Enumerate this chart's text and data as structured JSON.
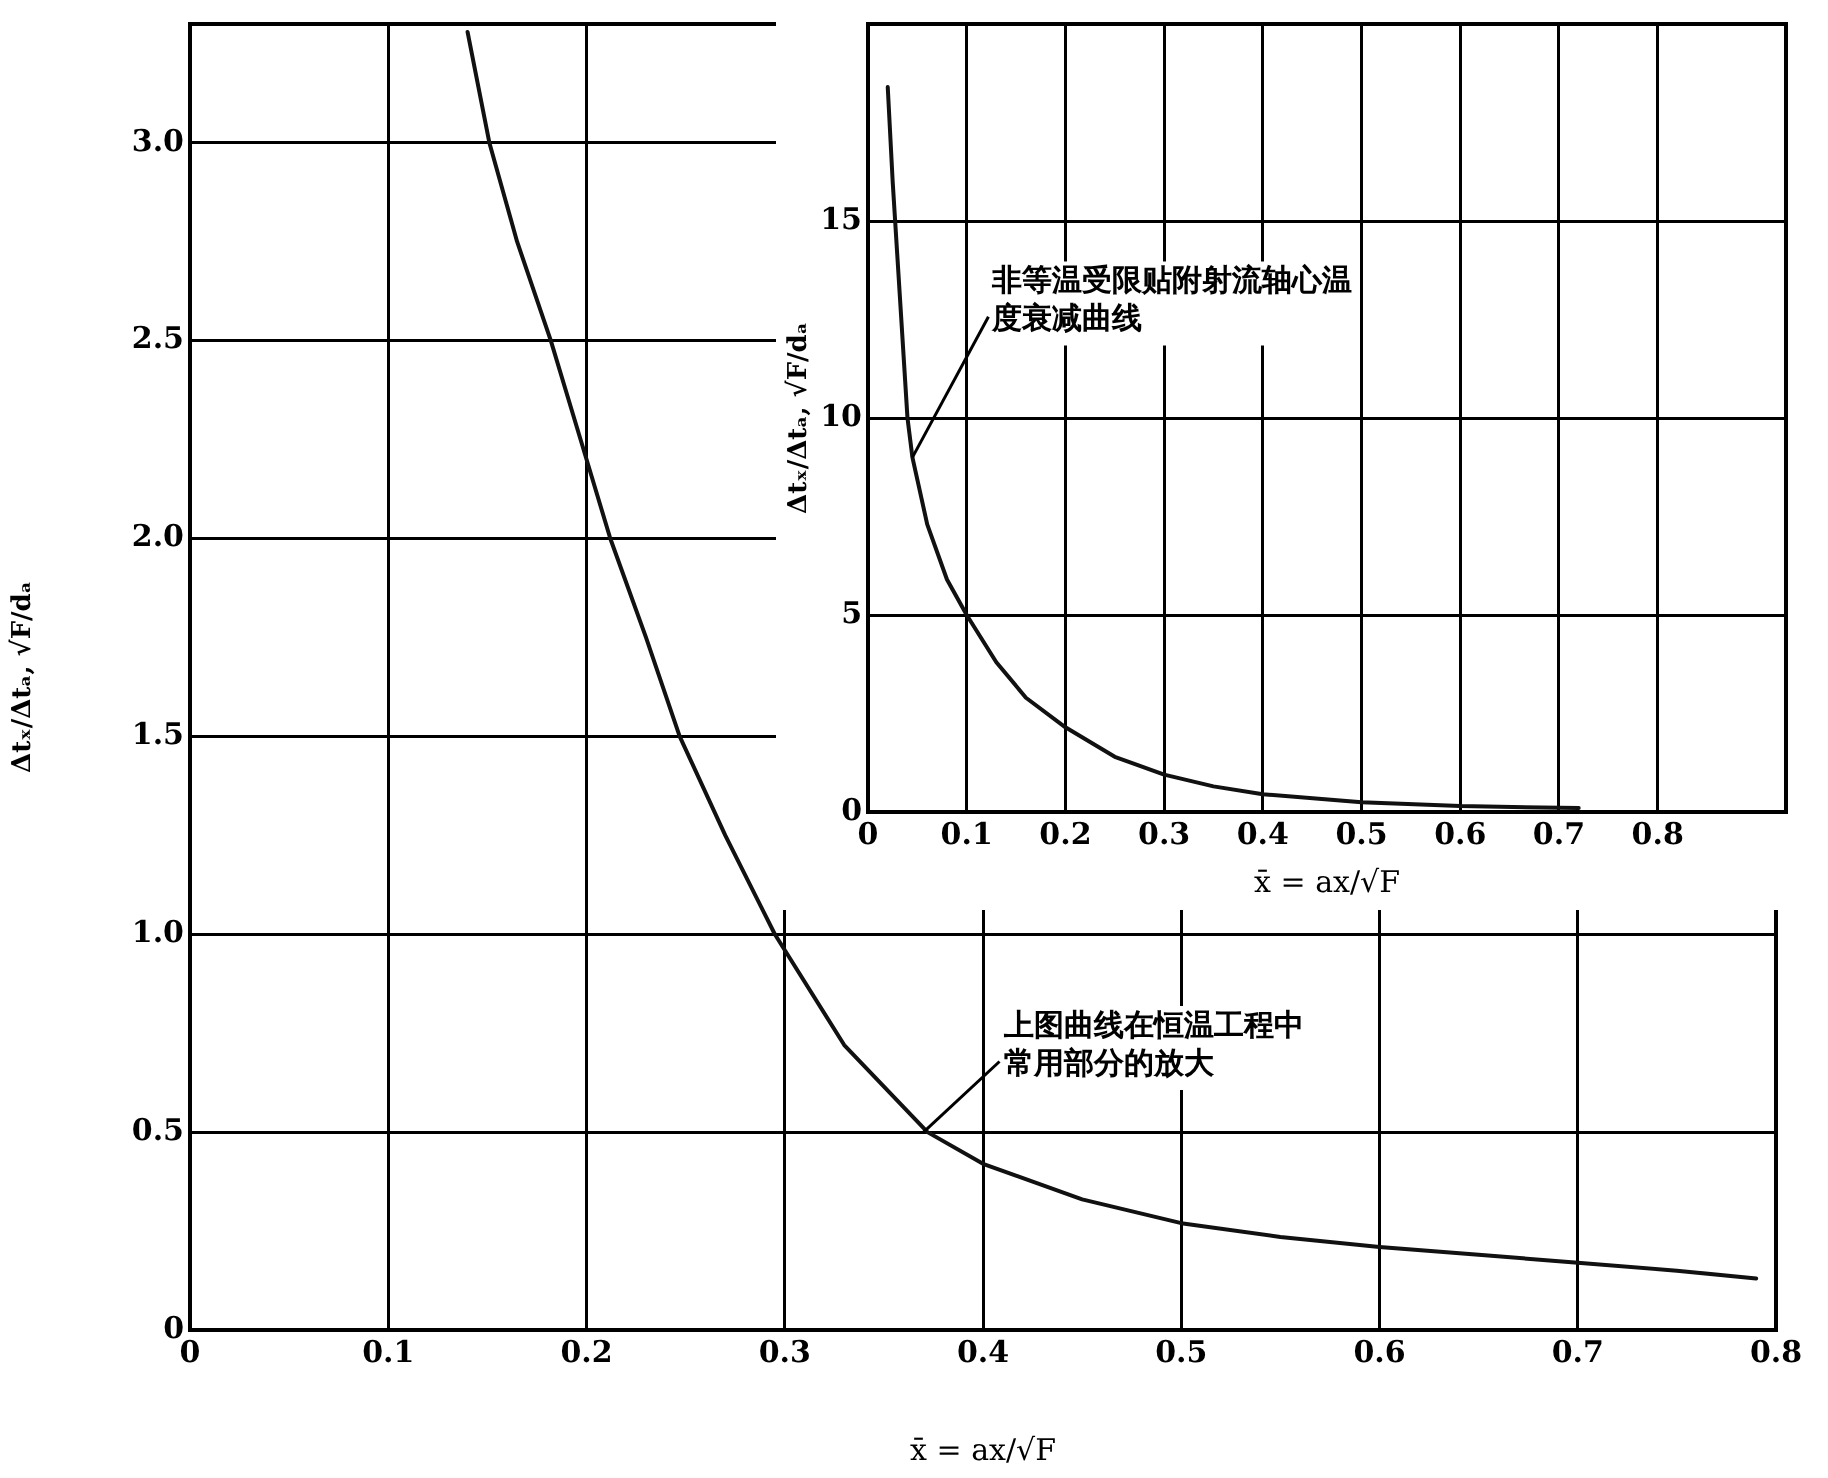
{
  "chart_data": [
    {
      "type": "line",
      "xlabel": "x̄ = ax/√F",
      "ylabel": "Δtₓ/Δtₐ, √F/dₐ",
      "xlim": [
        0,
        0.8
      ],
      "ylim": [
        0,
        3.3
      ],
      "xticks": [
        0,
        0.1,
        0.2,
        0.3,
        0.4,
        0.5,
        0.6,
        0.7,
        0.8
      ],
      "yticks": [
        0,
        0.5,
        {
          "value": 1,
          "label": "1.0"
        },
        1.5,
        {
          "value": 2,
          "label": "2.0"
        },
        2.5,
        {
          "value": 3,
          "label": "3.0"
        }
      ],
      "grid": true,
      "legend": false,
      "marker": "none",
      "line_style": "solid",
      "series": [
        {
          "color": "#111111",
          "x": [
            0.14,
            0.151,
            0.165,
            0.182,
            0.197,
            0.212,
            0.23,
            0.247,
            0.27,
            0.295,
            0.33,
            0.372,
            0.4,
            0.45,
            0.5,
            0.55,
            0.6,
            0.65,
            0.7,
            0.75,
            0.79
          ],
          "values": [
            3.28,
            3.0,
            2.75,
            2.5,
            2.25,
            2.0,
            1.75,
            1.5,
            1.25,
            1.0,
            0.72,
            0.5,
            0.42,
            0.33,
            0.27,
            0.235,
            0.21,
            0.19,
            0.17,
            0.15,
            0.13
          ]
        }
      ],
      "annotations": [
        {
          "text": "上图曲线在恒温工程中常用部分的放大",
          "x": 0.37,
          "y": 0.5
        }
      ]
    },
    {
      "type": "line",
      "xlabel": "x̄ = ax/√F",
      "ylabel": "Δtₓ/Δtₐ, √F/dₐ",
      "xlim": [
        0,
        0.93
      ],
      "ylim": [
        0,
        20
      ],
      "xticks": [
        0,
        0.1,
        0.2,
        0.3,
        0.4,
        0.5,
        0.6,
        0.7,
        0.8
      ],
      "yticks": [
        0,
        5,
        10,
        15
      ],
      "grid": true,
      "legend": false,
      "marker": "none",
      "line_style": "solid",
      "series": [
        {
          "color": "#111111",
          "x": [
            0.02,
            0.025,
            0.03,
            0.04,
            0.045,
            0.06,
            0.08,
            0.1,
            0.13,
            0.16,
            0.2,
            0.25,
            0.3,
            0.35,
            0.4,
            0.5,
            0.6,
            0.72
          ],
          "values": [
            18.4,
            16,
            14,
            10,
            9,
            7.3,
            5.9,
            5,
            3.8,
            2.9,
            2.15,
            1.4,
            0.95,
            0.65,
            0.45,
            0.25,
            0.15,
            0.1
          ]
        }
      ],
      "annotations": [
        {
          "text": "非等温受限贴附射流轴心温度衰减曲线",
          "x": 0.045,
          "y": 9
        }
      ]
    }
  ]
}
